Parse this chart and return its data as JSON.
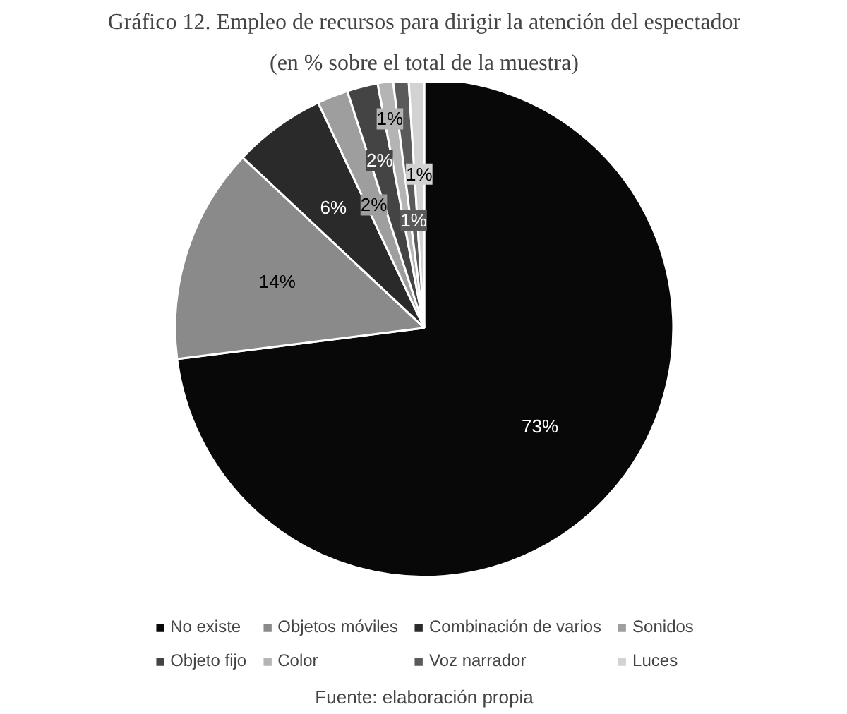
{
  "chart_data": {
    "type": "pie",
    "title": "Gráfico 12. Empleo de recursos para dirigir la atención del espectador",
    "subtitle": "(en % sobre el total de la muestra)",
    "categories": [
      "No existe",
      "Objetos móviles",
      "Combinación de varios",
      "Sonidos",
      "Objeto fijo",
      "Color",
      "Voz narrador",
      "Luces"
    ],
    "values": [
      73,
      14,
      6,
      2,
      2,
      1,
      1,
      1
    ],
    "colors": [
      "#080808",
      "#8a8a8a",
      "#2a2a2a",
      "#9e9e9e",
      "#444444",
      "#b4b4b4",
      "#5a5a5a",
      "#d2d2d2"
    ],
    "value_labels": [
      "73%",
      "14%",
      "6%",
      "2%",
      "2%",
      "1%",
      "1%",
      "1%"
    ],
    "legend": "bottom",
    "annotations": [
      "Fuente: elaboración propia"
    ]
  }
}
